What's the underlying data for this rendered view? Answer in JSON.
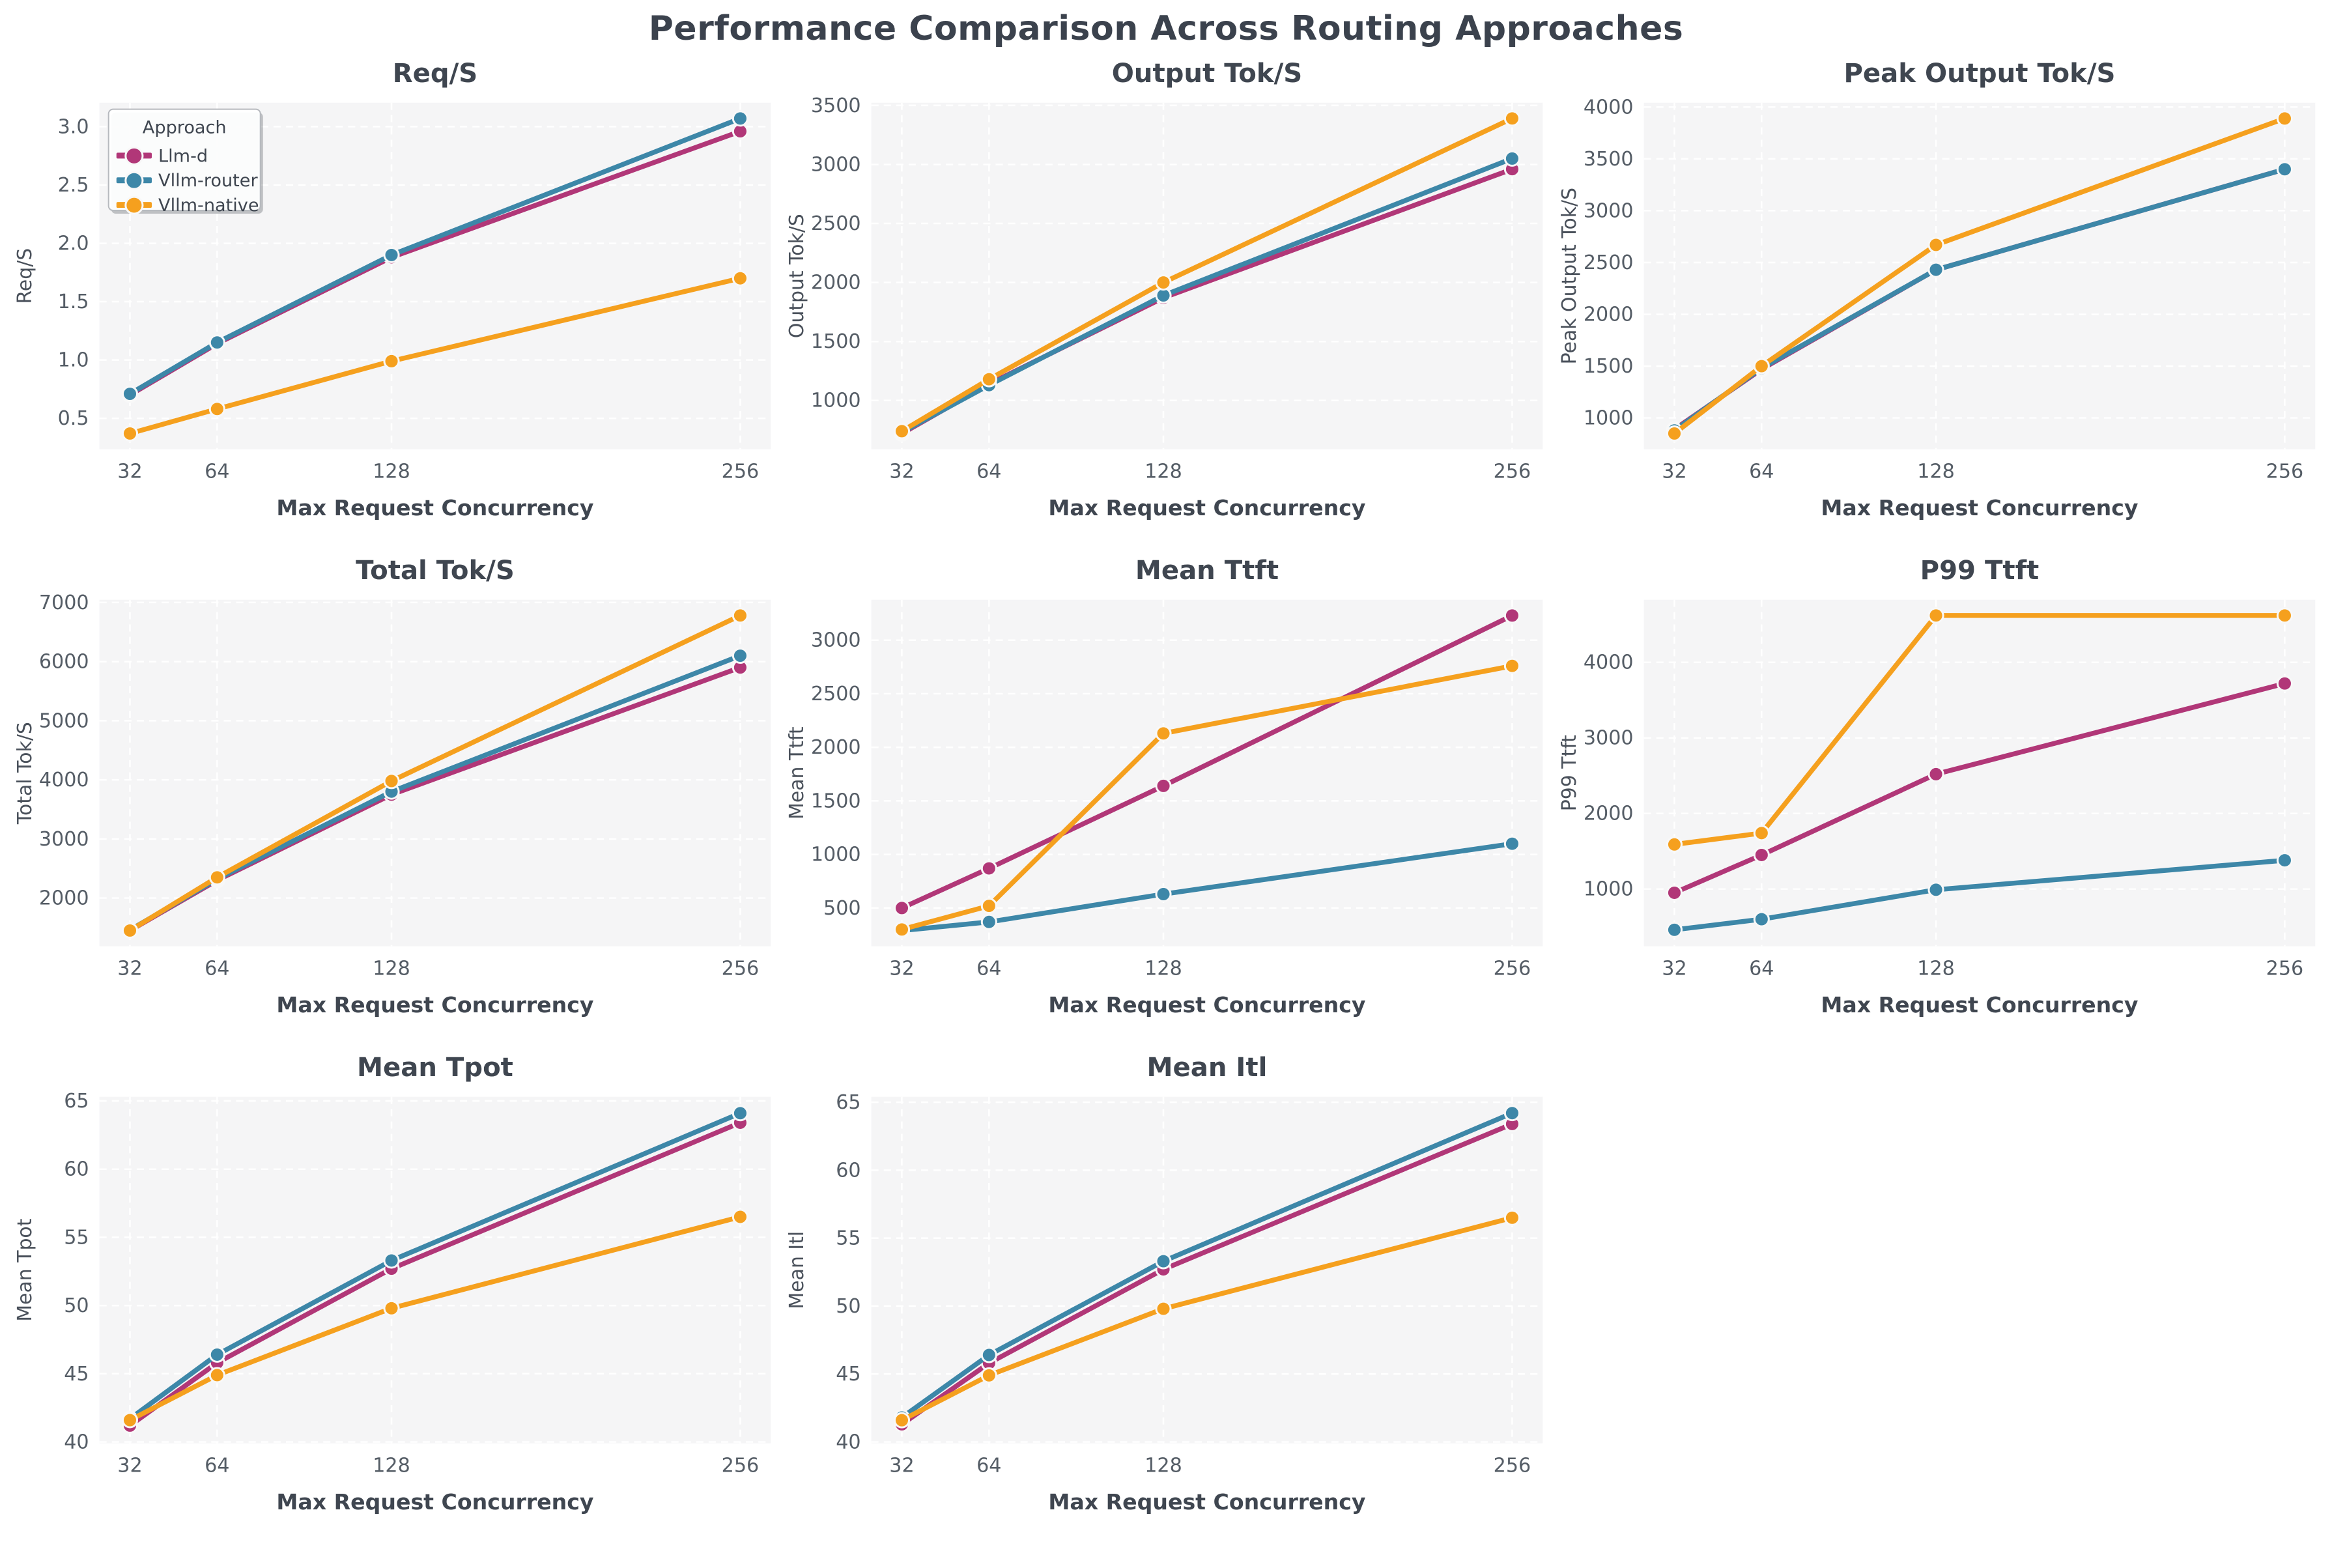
{
  "page": {
    "title": "Performance Comparison Across Routing Approaches"
  },
  "legend": {
    "title": "Approach",
    "items": [
      {
        "label": "Llm-d",
        "color": "#b13778"
      },
      {
        "label": "Vllm-router",
        "color": "#3d87a8"
      },
      {
        "label": "Vllm-native",
        "color": "#f5a01e"
      }
    ]
  },
  "shared_axis": {
    "xlabel": "Max Request Concurrency",
    "x_ticks": [
      32,
      64,
      128,
      256
    ],
    "xlim": [
      20.8,
      267.2
    ]
  },
  "style_colors": {
    "panel_bg": "#f5f5f6",
    "grid_line": "#ffffff",
    "heading_text": "#3f4650",
    "tick_text": "#555d66",
    "axis_label_text": "#4a515b",
    "marker_edge": "#f8f8f8",
    "legend_border": "#b6b9be"
  },
  "chart_data": [
    {
      "type": "line",
      "title": "Req/S",
      "ylabel": "Req/S",
      "xlabel": "Max Request Concurrency",
      "x": [
        32,
        64,
        128,
        256
      ],
      "grid": true,
      "legend_position": "upper-left",
      "show_legend": true,
      "yticks": [
        0.5,
        1.0,
        1.5,
        2.0,
        2.5,
        3.0
      ],
      "tick_decimals": 1,
      "ylim": [
        0.235,
        3.205
      ],
      "series": [
        {
          "name": "Llm-d",
          "color": "#b13778",
          "values": [
            0.7,
            1.14,
            1.88,
            2.96
          ]
        },
        {
          "name": "Vllm-router",
          "color": "#3d87a8",
          "values": [
            0.71,
            1.15,
            1.9,
            3.07
          ]
        },
        {
          "name": "Vllm-native",
          "color": "#f5a01e",
          "values": [
            0.37,
            0.58,
            0.99,
            1.7
          ]
        }
      ]
    },
    {
      "type": "line",
      "title": "Output Tok/S",
      "ylabel": "Output Tok/S",
      "xlabel": "Max Request Concurrency",
      "x": [
        32,
        64,
        128,
        256
      ],
      "grid": true,
      "show_legend": false,
      "yticks": [
        1000,
        1500,
        2000,
        2500,
        3000,
        3500
      ],
      "tick_decimals": 0,
      "ylim": [
        587,
        3523
      ],
      "series": [
        {
          "name": "Llm-d",
          "color": "#b13778",
          "values": [
            720,
            1140,
            1870,
            2960
          ]
        },
        {
          "name": "Vllm-router",
          "color": "#3d87a8",
          "values": [
            730,
            1130,
            1890,
            3050
          ]
        },
        {
          "name": "Vllm-native",
          "color": "#f5a01e",
          "values": [
            740,
            1180,
            2000,
            3390
          ]
        }
      ]
    },
    {
      "type": "line",
      "title": "Peak Output Tok/S",
      "ylabel": "Peak Output Tok/S",
      "xlabel": "Max Request Concurrency",
      "x": [
        32,
        64,
        128,
        256
      ],
      "grid": true,
      "show_legend": false,
      "yticks": [
        1000,
        1500,
        2000,
        2500,
        3000,
        3500,
        4000
      ],
      "tick_decimals": 0,
      "ylim": [
        698,
        4042
      ],
      "series": [
        {
          "name": "Llm-d",
          "color": "#b13778",
          "values": [
            890,
            1470,
            2430,
            3400
          ]
        },
        {
          "name": "Vllm-router",
          "color": "#3d87a8",
          "values": [
            880,
            1480,
            2430,
            3400
          ]
        },
        {
          "name": "Vllm-native",
          "color": "#f5a01e",
          "values": [
            850,
            1500,
            2670,
            3890
          ]
        }
      ]
    },
    {
      "type": "line",
      "title": "Total Tok/S",
      "ylabel": "Total Tok/S",
      "xlabel": "Max Request Concurrency",
      "x": [
        32,
        64,
        128,
        256
      ],
      "grid": true,
      "show_legend": false,
      "yticks": [
        2000,
        3000,
        4000,
        5000,
        6000,
        7000
      ],
      "tick_decimals": 0,
      "ylim": [
        1184,
        7046
      ],
      "series": [
        {
          "name": "Llm-d",
          "color": "#b13778",
          "values": [
            1450,
            2300,
            3750,
            5900
          ]
        },
        {
          "name": "Vllm-router",
          "color": "#3d87a8",
          "values": [
            1460,
            2320,
            3800,
            6100
          ]
        },
        {
          "name": "Vllm-native",
          "color": "#f5a01e",
          "values": [
            1450,
            2350,
            3980,
            6780
          ]
        }
      ]
    },
    {
      "type": "line",
      "title": "Mean Ttft",
      "ylabel": "Mean Ttft",
      "xlabel": "Max Request Concurrency",
      "x": [
        32,
        64,
        128,
        256
      ],
      "grid": true,
      "show_legend": false,
      "yticks": [
        500,
        1000,
        1500,
        2000,
        2500,
        3000
      ],
      "tick_decimals": 0,
      "ylim": [
        143,
        3377
      ],
      "series": [
        {
          "name": "Llm-d",
          "color": "#b13778",
          "values": [
            500,
            870,
            1640,
            3230
          ]
        },
        {
          "name": "Vllm-router",
          "color": "#3d87a8",
          "values": [
            290,
            370,
            630,
            1100
          ]
        },
        {
          "name": "Vllm-native",
          "color": "#f5a01e",
          "values": [
            300,
            520,
            2130,
            2760
          ]
        }
      ]
    },
    {
      "type": "line",
      "title": "P99 Ttft",
      "ylabel": "P99 Ttft",
      "xlabel": "Max Request Concurrency",
      "x": [
        32,
        64,
        128,
        256
      ],
      "grid": true,
      "show_legend": false,
      "yticks": [
        1000,
        2000,
        3000,
        4000
      ],
      "tick_decimals": 0,
      "ylim": [
        242,
        4828
      ],
      "series": [
        {
          "name": "Llm-d",
          "color": "#b13778",
          "values": [
            950,
            1450,
            2520,
            3720
          ]
        },
        {
          "name": "Vllm-router",
          "color": "#3d87a8",
          "values": [
            460,
            600,
            990,
            1380
          ]
        },
        {
          "name": "Vllm-native",
          "color": "#f5a01e",
          "values": [
            1590,
            1740,
            4620,
            4620
          ]
        }
      ]
    },
    {
      "type": "line",
      "title": "Mean Tpot",
      "ylabel": "Mean Tpot",
      "xlabel": "Max Request Concurrency",
      "x": [
        32,
        64,
        128,
        256
      ],
      "grid": true,
      "show_legend": false,
      "yticks": [
        40,
        45,
        50,
        55,
        60,
        65
      ],
      "tick_decimals": 0,
      "ylim": [
        39.9,
        65.3
      ],
      "series": [
        {
          "name": "Llm-d",
          "color": "#b13778",
          "values": [
            41.2,
            45.8,
            52.7,
            63.4
          ]
        },
        {
          "name": "Vllm-router",
          "color": "#3d87a8",
          "values": [
            41.7,
            46.4,
            53.3,
            64.1
          ]
        },
        {
          "name": "Vllm-native",
          "color": "#f5a01e",
          "values": [
            41.6,
            44.9,
            49.8,
            56.5
          ]
        }
      ]
    },
    {
      "type": "line",
      "title": "Mean Itl",
      "ylabel": "Mean Itl",
      "xlabel": "Max Request Concurrency",
      "x": [
        32,
        64,
        128,
        256
      ],
      "grid": true,
      "show_legend": false,
      "yticks": [
        40,
        45,
        50,
        55,
        60,
        65
      ],
      "tick_decimals": 0,
      "ylim": [
        39.9,
        65.4
      ],
      "series": [
        {
          "name": "Llm-d",
          "color": "#b13778",
          "values": [
            41.3,
            45.8,
            52.7,
            63.4
          ]
        },
        {
          "name": "Vllm-router",
          "color": "#3d87a8",
          "values": [
            41.8,
            46.4,
            53.3,
            64.2
          ]
        },
        {
          "name": "Vllm-native",
          "color": "#f5a01e",
          "values": [
            41.6,
            44.9,
            49.8,
            56.5
          ]
        }
      ]
    }
  ]
}
